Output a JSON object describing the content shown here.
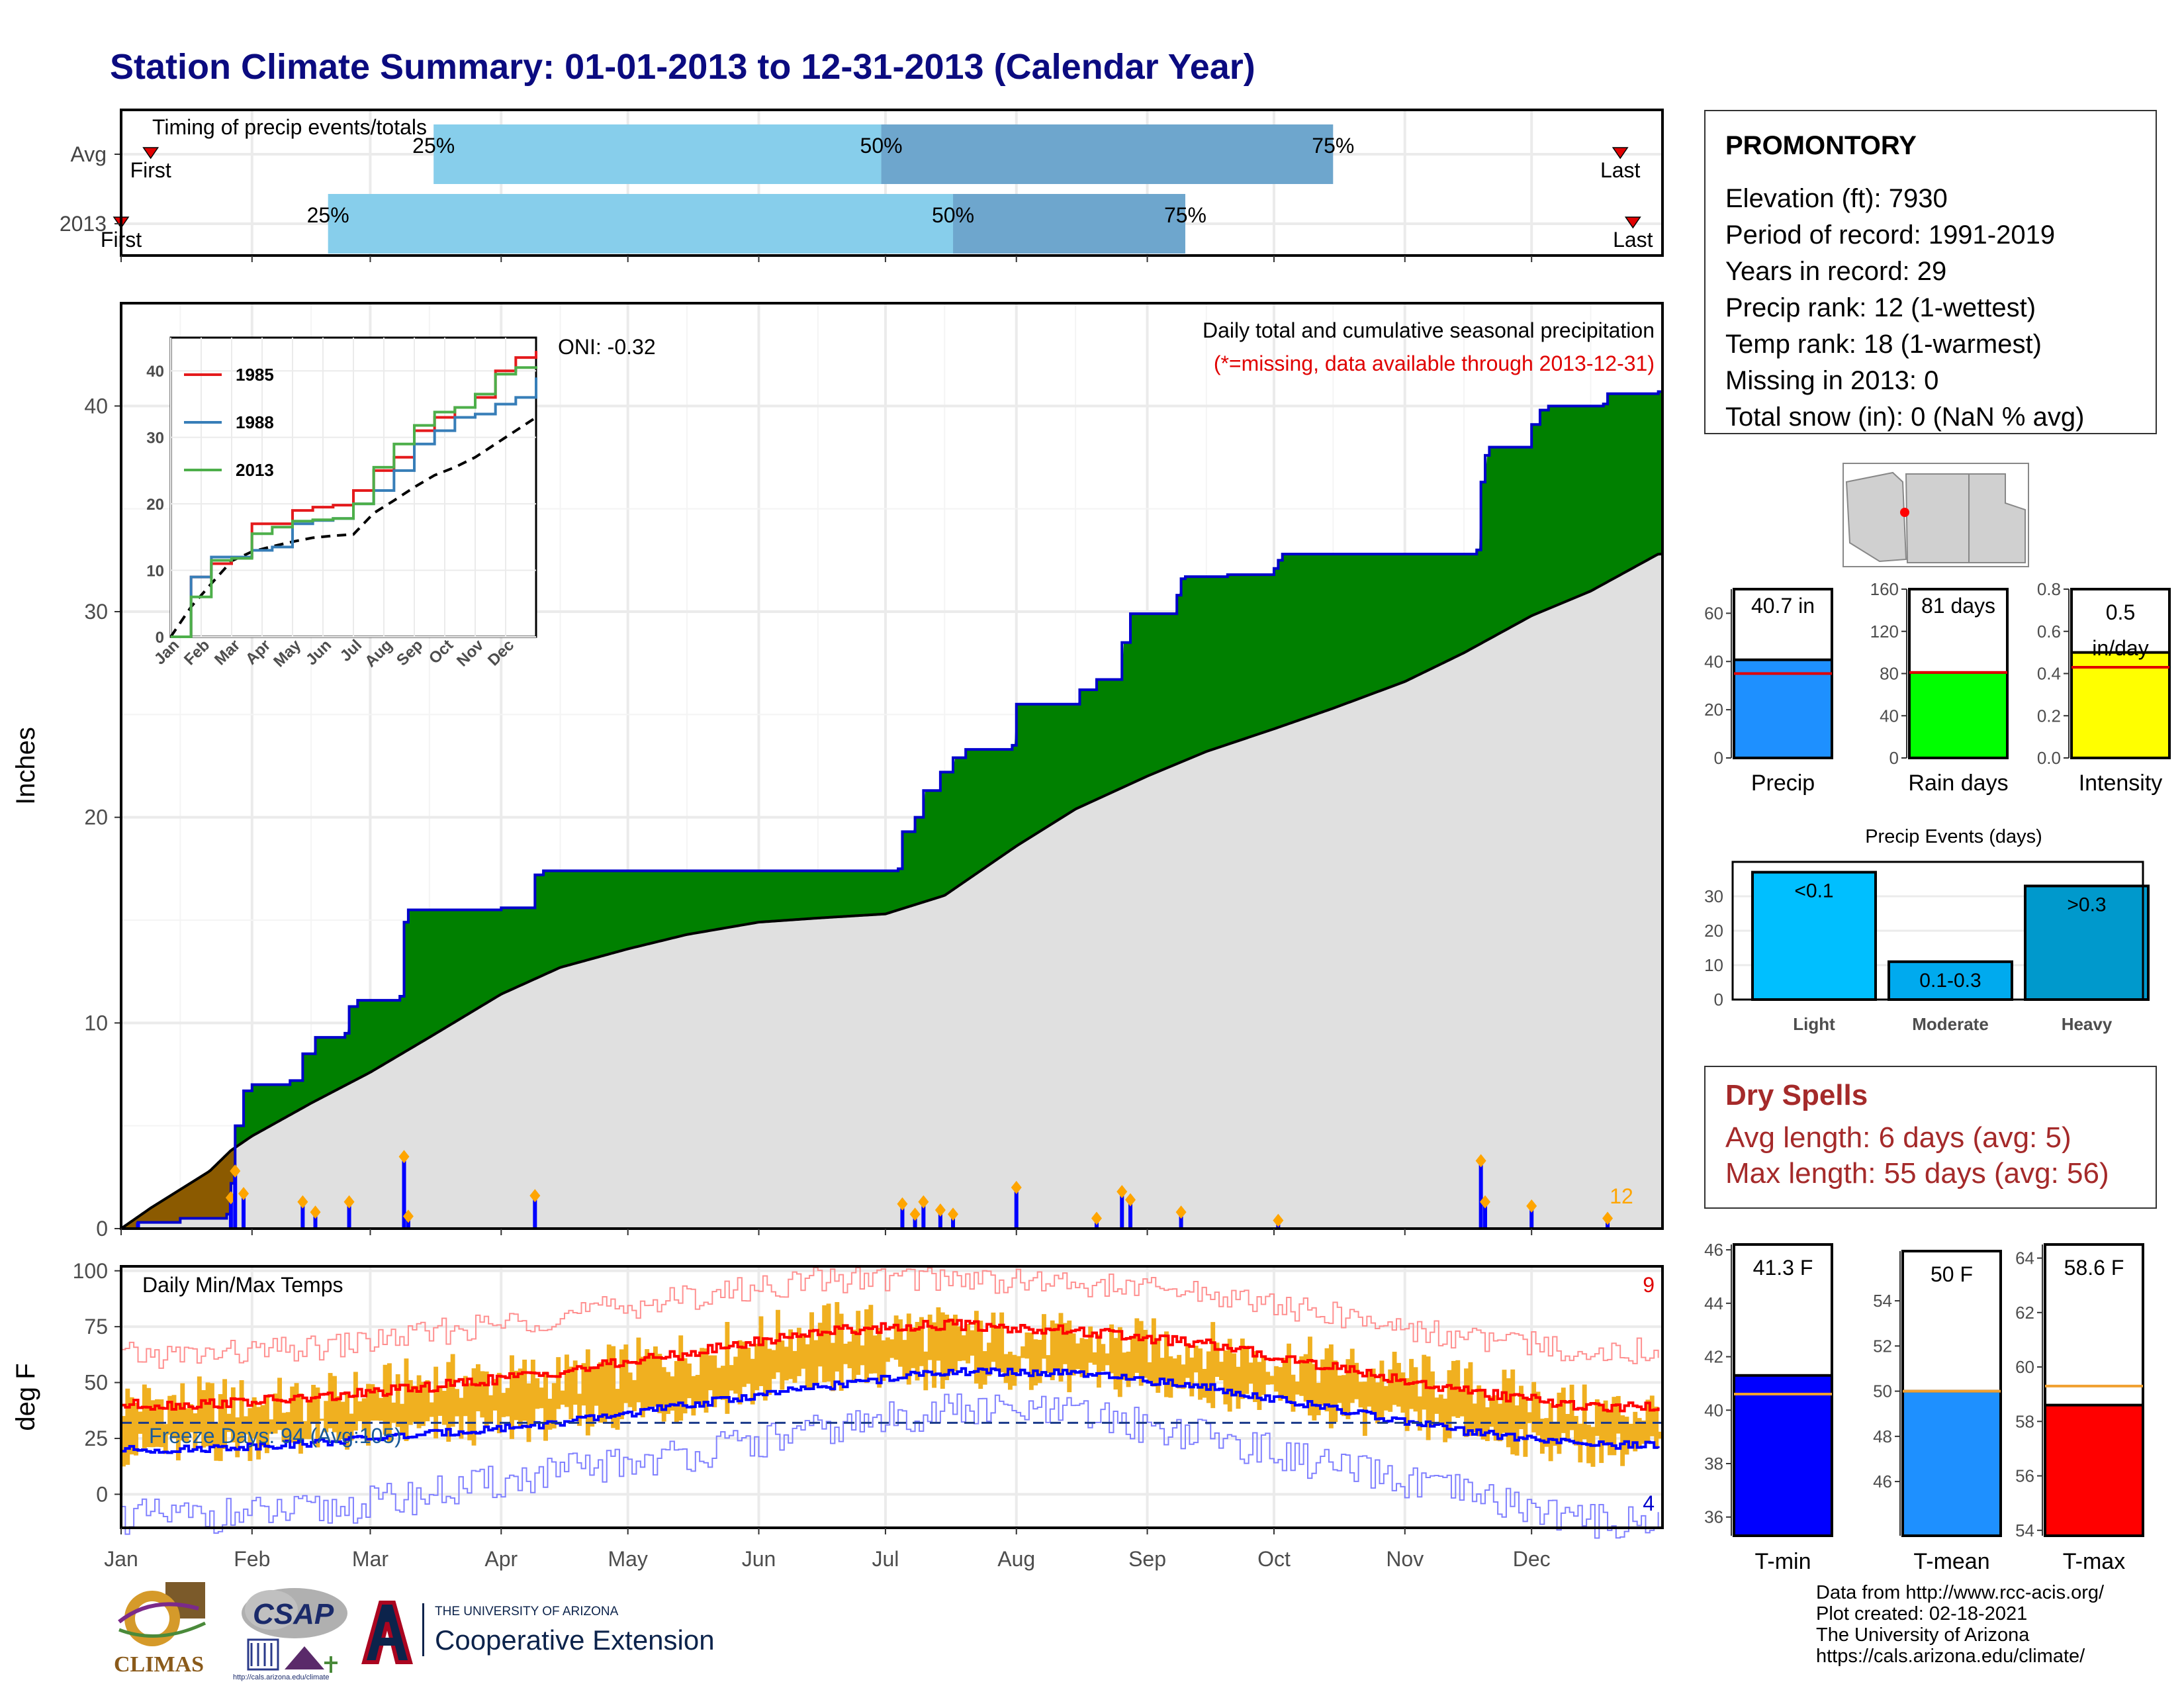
{
  "title": "Station Climate Summary: 01-01-2013 to 12-31-2013 (Calendar Year)",
  "months": [
    "Jan",
    "Feb",
    "Mar",
    "Apr",
    "May",
    "Jun",
    "Jul",
    "Aug",
    "Sep",
    "Oct",
    "Nov",
    "Dec"
  ],
  "station": {
    "name": "PROMONTORY",
    "lines": [
      "Elevation (ft): 7930",
      "Period of record: 1991-2019",
      "Years in record: 29",
      "Precip rank: 12 (1-wettest)",
      "Temp rank: 18 (1-warmest)",
      "Missing in 2013: 0",
      "Total snow (in): 0 (NaN % avg)"
    ]
  },
  "dry_spells": {
    "title": "Dry Spells",
    "avg_length": "Avg length: 6 days (avg: 5)",
    "max_length": "Max length: 55 days (avg: 56)"
  },
  "footer": {
    "lines": [
      "Data from http://www.rcc-acis.org/",
      "Plot created: 02-18-2021",
      "The University of Arizona",
      "https://cals.arizona.edu/climate/"
    ]
  },
  "logos": {
    "climas": "CLIMAS",
    "csap": "CSAP",
    "csap_url": "http://cals.arizona.edu/climate",
    "ua_top": "THE UNIVERSITY OF ARIZONA",
    "ua_bottom": "Cooperative Extension"
  },
  "colors": {
    "title": "#0b0b80",
    "cumulative_fill": "#008000",
    "normal_fill": "#e0e0e0",
    "deficit_fill": "#8b5a00",
    "daily_bars": "#0000ff",
    "bar_light": "#87ceeb",
    "bar_dark": "#6ea6cd",
    "tmax": "#ff0000",
    "tmin": "#0000ff",
    "temp_range": "#f0b020",
    "dry_spells": "#a52a2a"
  },
  "chart_data": [
    {
      "type": "bar",
      "title": "Timing of precip events/totals",
      "rows": [
        {
          "label": "Avg",
          "p25_date": "2013-03-16",
          "p50_date": "2013-06-30",
          "p75_date": "2013-10-15",
          "first_label": "First",
          "first_date": "2013-01-08",
          "last_label": "Last",
          "last_date": "2013-12-22"
        },
        {
          "label": "2013",
          "p25_date": "2013-02-19",
          "p50_date": "2013-07-17",
          "p75_date": "2013-09-10",
          "first_label": "First",
          "first_date": "2013-01-01",
          "last_label": "Last",
          "last_date": "2013-12-25"
        }
      ],
      "percent_labels": [
        "25%",
        "50%",
        "75%"
      ]
    },
    {
      "type": "area",
      "title": "Daily total and cumulative seasonal precipitation",
      "subtitle": "(*=missing, data available through 2013-12-31)",
      "annotation_oni": "ONI: -0.32",
      "ylabel": "Inches",
      "ylim": [
        0,
        45
      ],
      "yticks": [
        0,
        10,
        20,
        30,
        40
      ],
      "xlim": [
        "2013-01-01",
        "2013-12-31"
      ],
      "daily_max_label": "12",
      "observed_cumulative": [
        [
          "2013-01-01",
          0.0
        ],
        [
          "2013-01-05",
          0.3
        ],
        [
          "2013-01-15",
          0.5
        ],
        [
          "2013-01-26",
          0.7
        ],
        [
          "2013-01-27",
          2.2
        ],
        [
          "2013-01-28",
          5.0
        ],
        [
          "2013-01-30",
          6.7
        ],
        [
          "2013-02-01",
          7.0
        ],
        [
          "2013-02-10",
          7.2
        ],
        [
          "2013-02-13",
          8.5
        ],
        [
          "2013-02-16",
          9.3
        ],
        [
          "2013-02-23",
          9.5
        ],
        [
          "2013-02-24",
          10.8
        ],
        [
          "2013-02-26",
          11.1
        ],
        [
          "2013-03-08",
          11.3
        ],
        [
          "2013-03-09",
          14.9
        ],
        [
          "2013-03-10",
          15.5
        ],
        [
          "2013-04-01",
          15.6
        ],
        [
          "2013-04-09",
          17.2
        ],
        [
          "2013-04-11",
          17.4
        ],
        [
          "2013-07-04",
          17.5
        ],
        [
          "2013-07-05",
          19.3
        ],
        [
          "2013-07-08",
          20.0
        ],
        [
          "2013-07-10",
          21.3
        ],
        [
          "2013-07-14",
          22.2
        ],
        [
          "2013-07-17",
          22.9
        ],
        [
          "2013-07-20",
          23.3
        ],
        [
          "2013-07-31",
          23.5
        ],
        [
          "2013-08-01",
          25.5
        ],
        [
          "2013-08-16",
          26.2
        ],
        [
          "2013-08-20",
          26.7
        ],
        [
          "2013-08-26",
          28.5
        ],
        [
          "2013-08-28",
          29.9
        ],
        [
          "2013-09-08",
          30.8
        ],
        [
          "2013-09-09",
          31.6
        ],
        [
          "2013-09-10",
          31.7
        ],
        [
          "2013-09-20",
          31.8
        ],
        [
          "2013-10-01",
          32.1
        ],
        [
          "2013-10-02",
          32.5
        ],
        [
          "2013-10-03",
          32.8
        ],
        [
          "2013-11-18",
          33.0
        ],
        [
          "2013-11-19",
          36.3
        ],
        [
          "2013-11-20",
          37.6
        ],
        [
          "2013-11-21",
          38.0
        ],
        [
          "2013-12-01",
          39.1
        ],
        [
          "2013-12-03",
          39.8
        ],
        [
          "2013-12-05",
          40.0
        ],
        [
          "2013-12-18",
          40.1
        ],
        [
          "2013-12-19",
          40.6
        ],
        [
          "2013-12-31",
          40.7
        ]
      ],
      "normal_cumulative": [
        [
          "2013-01-01",
          0.0
        ],
        [
          "2013-01-08",
          1.0
        ],
        [
          "2013-01-15",
          1.9
        ],
        [
          "2013-01-22",
          2.8
        ],
        [
          "2013-01-27",
          3.8
        ],
        [
          "2013-02-01",
          4.5
        ],
        [
          "2013-02-15",
          6.1
        ],
        [
          "2013-03-01",
          7.6
        ],
        [
          "2013-03-15",
          9.3
        ],
        [
          "2013-04-01",
          11.4
        ],
        [
          "2013-04-15",
          12.7
        ],
        [
          "2013-05-01",
          13.6
        ],
        [
          "2013-05-15",
          14.3
        ],
        [
          "2013-06-01",
          14.9
        ],
        [
          "2013-06-15",
          15.1
        ],
        [
          "2013-07-01",
          15.3
        ],
        [
          "2013-07-15",
          16.2
        ],
        [
          "2013-08-01",
          18.6
        ],
        [
          "2013-08-15",
          20.4
        ],
        [
          "2013-09-01",
          22.0
        ],
        [
          "2013-09-15",
          23.2
        ],
        [
          "2013-10-01",
          24.3
        ],
        [
          "2013-10-15",
          25.3
        ],
        [
          "2013-11-01",
          26.6
        ],
        [
          "2013-11-15",
          28.0
        ],
        [
          "2013-12-01",
          29.8
        ],
        [
          "2013-12-15",
          31.0
        ],
        [
          "2013-12-31",
          32.8
        ]
      ],
      "daily_precip": [
        [
          "2013-01-05",
          0.3
        ],
        [
          "2013-01-27",
          1.5
        ],
        [
          "2013-01-28",
          2.8
        ],
        [
          "2013-01-30",
          1.7
        ],
        [
          "2013-02-13",
          1.3
        ],
        [
          "2013-02-16",
          0.8
        ],
        [
          "2013-02-24",
          1.3
        ],
        [
          "2013-03-09",
          3.5
        ],
        [
          "2013-03-10",
          0.6
        ],
        [
          "2013-04-09",
          1.6
        ],
        [
          "2013-07-05",
          1.2
        ],
        [
          "2013-07-08",
          0.7
        ],
        [
          "2013-07-10",
          1.3
        ],
        [
          "2013-07-14",
          0.9
        ],
        [
          "2013-07-17",
          0.7
        ],
        [
          "2013-08-01",
          2.0
        ],
        [
          "2013-08-20",
          0.5
        ],
        [
          "2013-08-26",
          1.8
        ],
        [
          "2013-08-28",
          1.4
        ],
        [
          "2013-09-09",
          0.8
        ],
        [
          "2013-10-02",
          0.4
        ],
        [
          "2013-11-19",
          3.3
        ],
        [
          "2013-11-20",
          1.3
        ],
        [
          "2013-12-01",
          1.1
        ],
        [
          "2013-12-19",
          0.5
        ]
      ],
      "inset": {
        "type": "line",
        "ylim": [
          0,
          45
        ],
        "yticks": [
          0,
          10,
          20,
          30,
          40
        ],
        "series": [
          {
            "name": "1985",
            "color": "#e41a1c",
            "values": [
              0,
              9,
              11,
              12,
              17,
              17,
              19,
              19.5,
              19.8,
              22,
              25,
              27,
              31,
              33,
              34.5,
              36,
              40,
              42,
              43
            ]
          },
          {
            "name": "1988",
            "color": "#377eb8",
            "values": [
              0,
              9,
              12,
              12,
              13,
              13.5,
              17,
              17.5,
              17.8,
              20,
              22,
              25,
              29,
              31,
              33,
              33.5,
              35,
              36,
              39
            ]
          },
          {
            "name": "2013",
            "color": "#4daf4a",
            "values": [
              0,
              6,
              11.5,
              11.8,
              15.5,
              16.5,
              17.4,
              17.6,
              17.8,
              20,
              25.5,
              29,
              31.8,
              33.8,
              34.5,
              36.5,
              39.5,
              40.5,
              40.7
            ]
          }
        ],
        "normal": [
          0,
          4.5,
          8,
          11.4,
          12.8,
          13.6,
          14.3,
          14.9,
          15.2,
          15.4,
          18.6,
          20.5,
          22.5,
          24.3,
          25.5,
          27,
          29,
          31,
          33
        ]
      }
    },
    {
      "type": "line",
      "title": "Daily Min/Max Temps",
      "ylabel": "deg F",
      "ylim": [
        -15,
        102
      ],
      "yticks": [
        0,
        25,
        50,
        75,
        100
      ],
      "freeze_line": 32,
      "freeze_label": "Freeze Days: 94 (Avg:105)",
      "count_hot": "9",
      "count_cold": "4",
      "series": [
        {
          "name": "avg max",
          "color": "#ff0000",
          "month_values": [
            40,
            43,
            48,
            55,
            63,
            73,
            76,
            73,
            67,
            57,
            46,
            39
          ]
        },
        {
          "name": "avg min",
          "color": "#0000ff",
          "month_values": [
            20,
            23,
            27,
            32,
            40,
            48,
            55,
            54,
            48,
            38,
            28,
            22
          ]
        },
        {
          "name": "record max",
          "color": "#ff9090",
          "month_values": [
            62,
            65,
            72,
            80,
            88,
            96,
            97,
            94,
            90,
            80,
            70,
            64
          ]
        },
        {
          "name": "record min",
          "color": "#8080ff",
          "month_values": [
            -10,
            -8,
            0,
            10,
            18,
            28,
            38,
            36,
            26,
            12,
            0,
            -12
          ]
        }
      ],
      "observed_range": {
        "color": "#f0b020",
        "month_tmax": [
          42,
          42,
          52,
          53,
          63,
          76,
          74,
          70,
          67,
          58,
          50,
          38
        ],
        "month_tmin": [
          20,
          25,
          28,
          32,
          40,
          51,
          55,
          52,
          47,
          36,
          28,
          20
        ]
      }
    },
    {
      "type": "bar",
      "panels": [
        {
          "category": "Precip",
          "value": 40.7,
          "label": "40.7 in",
          "avg": 35,
          "color": "#1e90ff",
          "ylim": [
            0,
            70
          ],
          "yticks": [
            0,
            20,
            40,
            60
          ]
        },
        {
          "category": "Rain days",
          "value": 81,
          "label": "81 days",
          "avg": 81,
          "color": "#00ff00",
          "ylim": [
            0,
            160
          ],
          "yticks": [
            0,
            40,
            80,
            120,
            160
          ]
        },
        {
          "category": "Intensity",
          "value": 0.5,
          "label": "0.5 in/day",
          "avg": 0.43,
          "color": "#ffff00",
          "ylim": [
            0,
            0.8
          ],
          "yticks": [
            0.0,
            0.2,
            0.4,
            0.6,
            0.8
          ]
        }
      ]
    },
    {
      "type": "bar",
      "title": "Precip Events (days)",
      "categories": [
        "Light",
        "Moderate",
        "Heavy"
      ],
      "values": [
        37,
        11,
        33
      ],
      "bar_labels": [
        "<0.1",
        "0.1-0.3",
        ">0.3"
      ],
      "colors": [
        "#00bfff",
        "#00aaee",
        "#0099cc"
      ],
      "ylim": [
        0,
        40
      ],
      "yticks": [
        0,
        10,
        20,
        30
      ]
    },
    {
      "type": "bar",
      "panels": [
        {
          "category": "T-min",
          "value": 41.3,
          "label": "41.3 F",
          "avg": 40.6,
          "color": "#0000ff",
          "ylim": [
            35.3,
            46.2
          ],
          "yticks": [
            36,
            38,
            40,
            42,
            44,
            46
          ]
        },
        {
          "category": "T-mean",
          "value": 50,
          "label": "50 F",
          "avg": 50,
          "color": "#1e90ff",
          "ylim": [
            43.6,
            56.2
          ],
          "yticks": [
            46,
            48,
            50,
            52,
            54
          ]
        },
        {
          "category": "T-max",
          "value": 58.6,
          "label": "58.6 F",
          "avg": 59.3,
          "color": "#ff0000",
          "ylim": [
            53.8,
            64.5
          ],
          "yticks": [
            54,
            56,
            58,
            60,
            62,
            64
          ]
        }
      ]
    }
  ]
}
